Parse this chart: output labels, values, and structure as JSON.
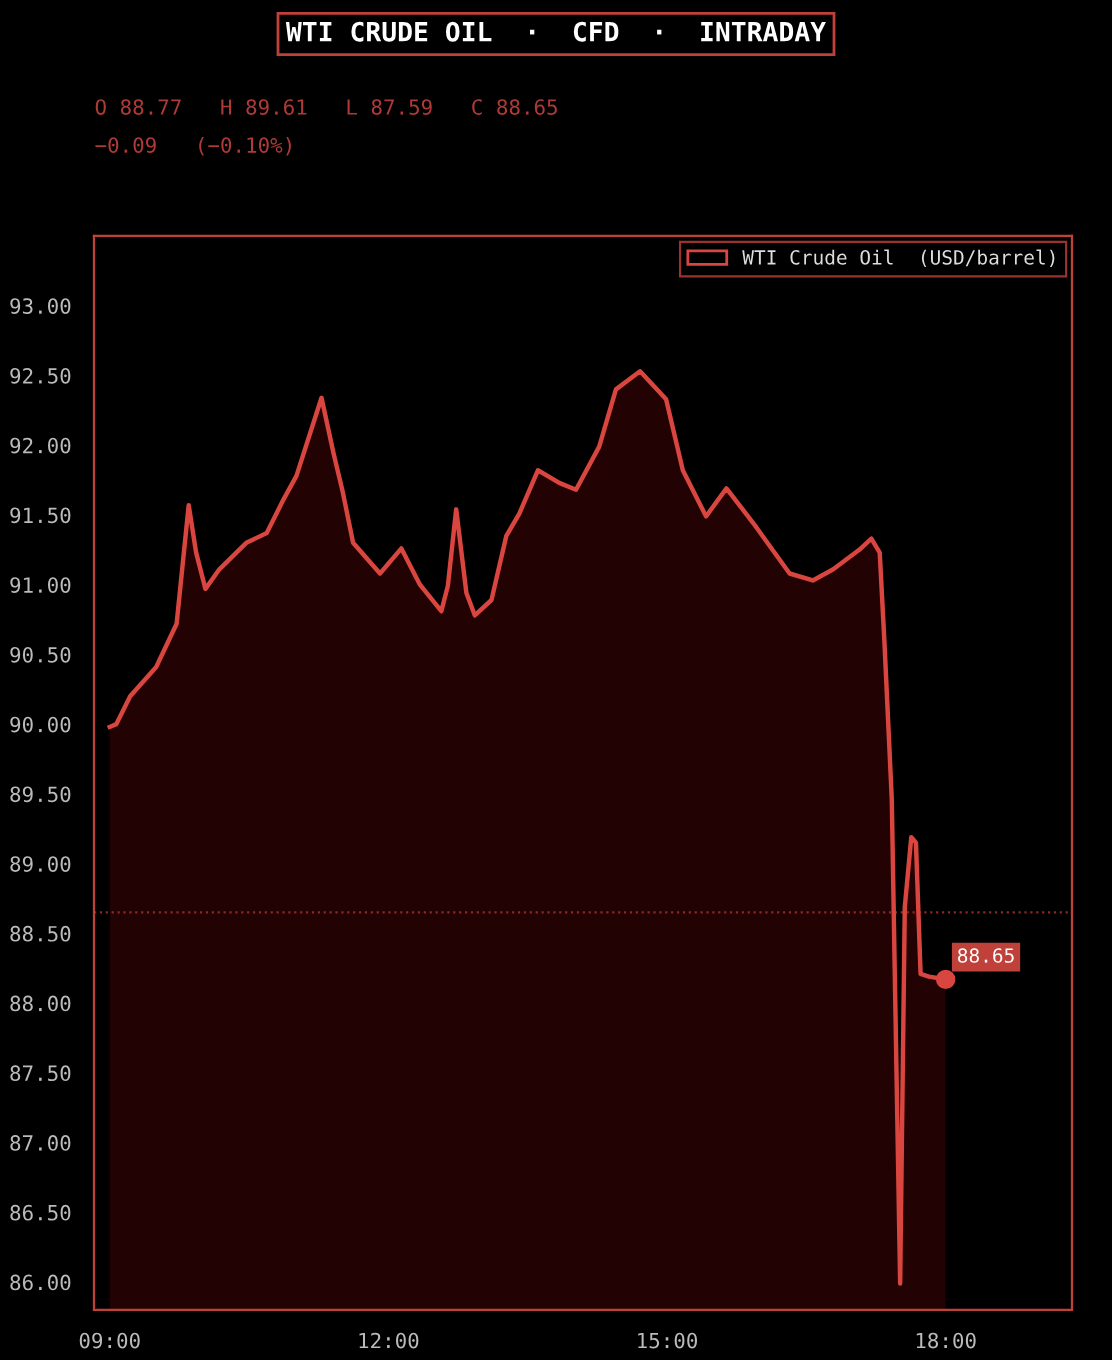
{
  "chart_data": {
    "type": "area",
    "title": "WTI CRUDE OIL  ·  CFD  ·  INTRADAY",
    "subtitle": "O 88.77   H 89.61   L 87.59   C 88.65",
    "annotations": [
      "−0.09   (−0.10%)",
      "88.65"
    ],
    "series": [
      {
        "name": "WTI Crude Oil  (USD/barrel)",
        "color": "#d9463f",
        "x": [
          9.0,
          9.07,
          9.22,
          9.5,
          9.72,
          9.85,
          9.93,
          10.03,
          10.18,
          10.47,
          10.69,
          10.87,
          11.01,
          11.28,
          11.41,
          11.51,
          11.62,
          11.91,
          12.14,
          12.34,
          12.57,
          12.64,
          12.73,
          12.84,
          12.93,
          13.11,
          13.27,
          13.41,
          13.61,
          13.84,
          14.02,
          14.27,
          14.45,
          14.71,
          14.99,
          15.17,
          15.42,
          15.64,
          15.93,
          16.32,
          16.57,
          16.79,
          17.07,
          17.2,
          17.29,
          17.34,
          17.42,
          17.51,
          17.56,
          17.63,
          17.68,
          17.73,
          17.82,
          18.0
        ],
        "values": [
          89.98,
          90.0,
          90.2,
          90.41,
          90.72,
          91.57,
          91.23,
          90.97,
          91.11,
          91.3,
          91.37,
          91.61,
          91.78,
          92.34,
          91.94,
          91.66,
          91.3,
          91.08,
          91.26,
          91.0,
          90.81,
          90.99,
          91.54,
          90.94,
          90.78,
          90.89,
          91.35,
          91.51,
          91.82,
          91.73,
          91.68,
          91.99,
          92.4,
          92.53,
          92.33,
          91.82,
          91.49,
          91.69,
          91.44,
          91.08,
          91.03,
          91.11,
          91.25,
          91.33,
          91.23,
          90.6,
          89.46,
          85.99,
          88.69,
          89.19,
          89.15,
          88.21,
          88.19,
          88.17
        ]
      }
    ],
    "xlim": [
      8.83,
      19.36
    ],
    "ylim": [
      85.8,
      93.5
    ],
    "xticks": [
      {
        "value": 9,
        "label": "09:00"
      },
      {
        "value": 12,
        "label": "12:00"
      },
      {
        "value": 15,
        "label": "15:00"
      },
      {
        "value": 18,
        "label": "18:00"
      }
    ],
    "yticks": [
      {
        "value": 86,
        "label": "86.00"
      },
      {
        "value": 86.5,
        "label": "86.50"
      },
      {
        "value": 87,
        "label": "87.00"
      },
      {
        "value": 87.5,
        "label": "87.50"
      },
      {
        "value": 88,
        "label": "88.00"
      },
      {
        "value": 88.5,
        "label": "88.50"
      },
      {
        "value": 89,
        "label": "89.00"
      },
      {
        "value": 89.5,
        "label": "89.50"
      },
      {
        "value": 90,
        "label": "90.00"
      },
      {
        "value": 90.5,
        "label": "90.50"
      },
      {
        "value": 91,
        "label": "91.00"
      },
      {
        "value": 91.5,
        "label": "91.50"
      },
      {
        "value": 92,
        "label": "92.00"
      },
      {
        "value": 92.5,
        "label": "92.50"
      },
      {
        "value": 93,
        "label": "93.00"
      }
    ],
    "ref_lines": [
      {
        "axis": "y",
        "value": 88.65,
        "color": "#8a2a26",
        "line_style": "dotted"
      }
    ],
    "legend": "top right"
  }
}
